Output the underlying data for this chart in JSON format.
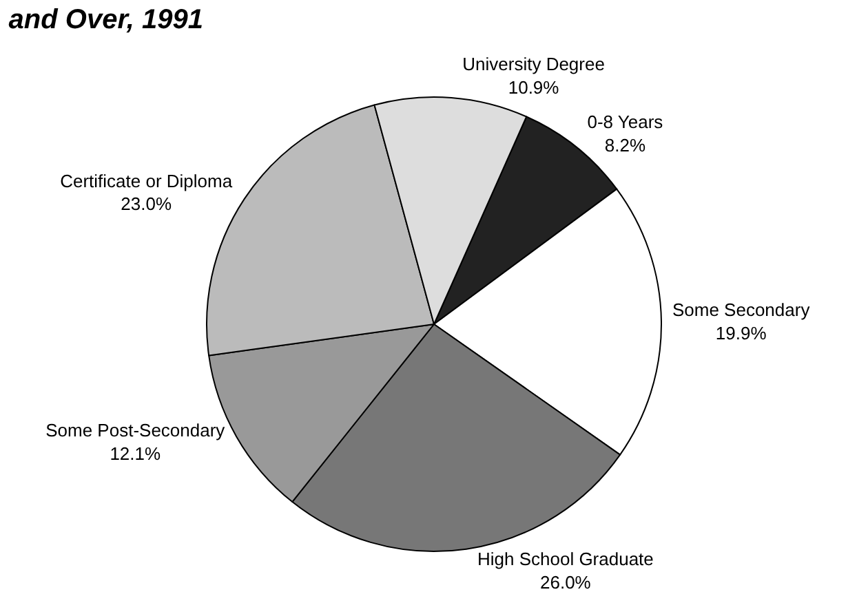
{
  "chart_data": {
    "type": "pie",
    "title": "and Over, 1991",
    "categories": [
      "0-8 Years",
      "Some Secondary",
      "High School Graduate",
      "Some Post-Secondary",
      "Certificate or Diploma",
      "University Degree"
    ],
    "values": [
      8.2,
      19.9,
      26.0,
      12.1,
      23.0,
      10.9
    ],
    "value_labels": [
      "8.2%",
      "19.9%",
      "26.0%",
      "12.1%",
      "23.0%",
      "10.9%"
    ],
    "colors": [
      "#222222",
      "#ffffff",
      "#777777",
      "#999999",
      "#bbbbbb",
      "#dddddd"
    ],
    "legend": false
  }
}
